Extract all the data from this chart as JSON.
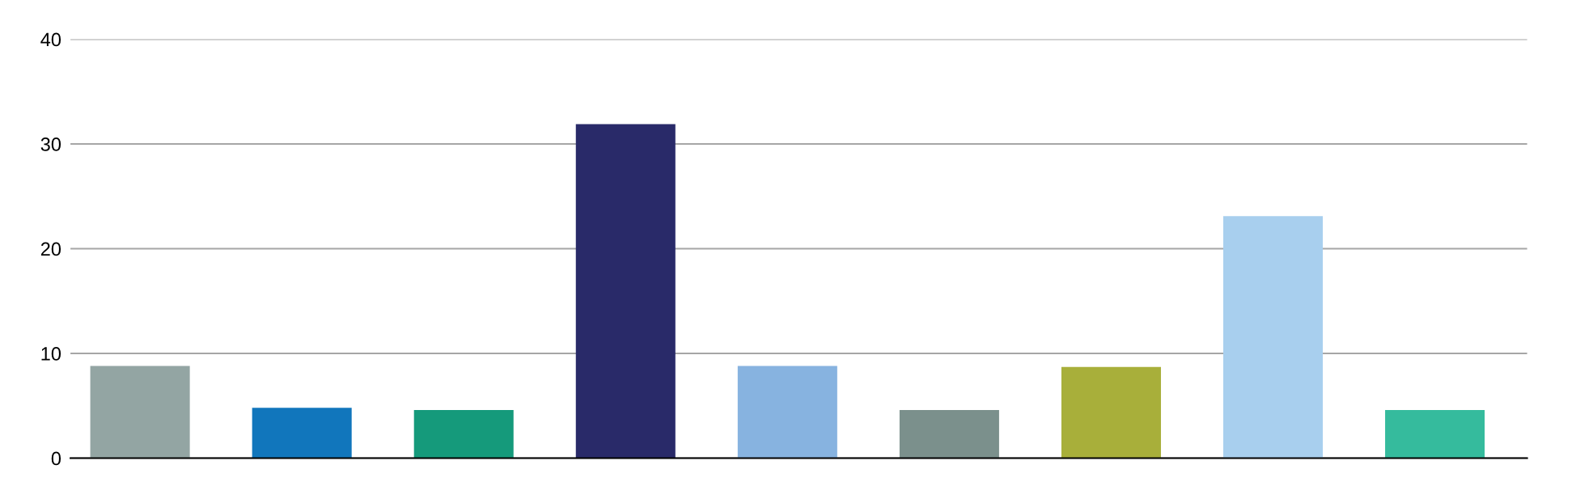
{
  "chart_data": {
    "type": "bar",
    "categories": [
      null,
      null,
      null,
      null,
      null,
      null,
      null,
      null,
      null
    ],
    "values": [
      8.8,
      4.8,
      4.6,
      31.9,
      8.8,
      4.6,
      8.7,
      23.1,
      4.6
    ],
    "colors": [
      "#93a5a3",
      "#1176bc",
      "#159a7b",
      "#292a69",
      "#87b3e0",
      "#7b908c",
      "#a8af3a",
      "#a8cfee",
      "#35bb9d"
    ],
    "ylim": [
      0,
      40
    ],
    "yticks": [
      0,
      10,
      20,
      30,
      40
    ],
    "grid": "y"
  }
}
